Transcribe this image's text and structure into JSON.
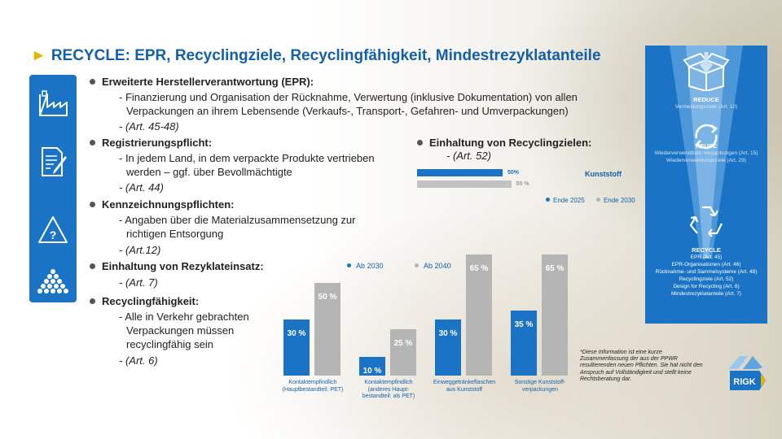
{
  "title": "RECYCLE: EPR, Recyclingziele, Recyclingfähigkeit, Mindestrezyklatanteile",
  "left_icons": [
    "factory-icon",
    "document-pen-icon",
    "warning-question-icon",
    "granules-icon"
  ],
  "left_icon_question": "?",
  "bullets": [
    {
      "heading": "Erweiterte Herstellerverantwortung (EPR):",
      "lines": [
        "- Finanzierung und Organisation der Rücknahme, Verwertung (inklusive Dokumentation) von allen",
        "Verpackungen an ihrem Lebensende (Verkaufs-, Transport-, Gefahren- und Umverpackungen)"
      ],
      "ref": "- (Art. 45-48)"
    },
    {
      "heading": "Registrierungspflicht:",
      "lines": [
        "- In jedem Land, in dem verpackte Produkte vertrieben",
        "werden – ggf. über Bevollmächtigte"
      ],
      "ref": "- (Art. 44)"
    },
    {
      "heading": "Kennzeichnungspflichten:",
      "lines": [
        "- Angaben über die Materialzusammensetzung zur",
        "richtigen Entsorgung"
      ],
      "ref": "- (Art.12)"
    },
    {
      "heading": "Einhaltung von Rezyklateinsatz:",
      "lines": [],
      "ref": "- (Art. 7)"
    },
    {
      "heading": "Recyclingfähigkeit:",
      "lines": [
        "- Alle in Verkehr gebrachten",
        "Verpackungen müssen",
        "recyclingfähig sein"
      ],
      "ref": "- (Art. 6)"
    }
  ],
  "recycling_goals": {
    "heading": "Einhaltung von Recyclingzielen:",
    "ref": "- (Art. 52)"
  },
  "chart_data": [
    {
      "type": "bar",
      "orientation": "horizontal",
      "categories": [
        "Kunststoff"
      ],
      "series": [
        {
          "name": "Ende 2025",
          "values": [
            50
          ],
          "label": "50%"
        },
        {
          "name": "Ende 2030",
          "values": [
            55
          ],
          "label": "55 %"
        }
      ],
      "xlim": [
        0,
        100
      ]
    },
    {
      "type": "bar",
      "categories": [
        "Kontaktempfindlich (Hauptbestandteil: PET)",
        "Kontaktempfindlich (anderes Haupt-bestandteil: als PET)",
        "Einweggetränkeflaschen aus Kunststoff",
        "Sonstige Kunststoff-verpackungen"
      ],
      "category_lines": [
        [
          "Kontaktempfindlich",
          "(Hauptbestandteil: PET)"
        ],
        [
          "Kontaktempfindlich",
          "(anderes Haupt-",
          "bestandteil: als PET)"
        ],
        [
          "Einweggetränkeflaschen",
          "aus Kunststoff"
        ],
        [
          "Sonstige Kunststoff-",
          "verpackungen"
        ]
      ],
      "series": [
        {
          "name": "Ab 2030",
          "values": [
            30,
            10,
            30,
            35
          ],
          "labels": [
            "30 %",
            "10 %",
            "30 %",
            "35 %"
          ]
        },
        {
          "name": "Ab 2040",
          "values": [
            50,
            25,
            65,
            65
          ],
          "labels": [
            "50 %",
            "25 %",
            "65 %",
            "65 %"
          ]
        }
      ],
      "ylim": [
        0,
        70
      ]
    }
  ],
  "colors": {
    "blue": "#1a73c4",
    "grey": "#a9a9a9",
    "title": "#1460a8",
    "arrow": "#e2b400"
  },
  "right_panel": {
    "reduce": {
      "title": "REDUCE",
      "lines": [
        "Vermeidungsziele (Art. 10)"
      ]
    },
    "reuse": {
      "title": "REUSE",
      "lines": [
        "Wiederverwendbare Verpackungen (Art. 15)",
        "Wiederverwendungsziele (Art. 29)"
      ]
    },
    "recycle": {
      "title": "RECYCLE",
      "lines": [
        "EPR (Art. 45)",
        "EPR-Organisationen (Art. 46)",
        "Rücknahme- und Sammelsysteme (Art. 48)",
        "Recyclingziele (Art. 52)",
        "Design for Recycling (Art. 6)",
        "Mindestrezyklatanteile (Art. 7)"
      ]
    }
  },
  "note": "*Diese Information ist eine kurze Zusammenfassung der aus der PPWR resultierenden neuen Pflichten. Sie hat nicht den Anspruch auf Vollständigkeit und stellt keine Rechtsberatung dar.",
  "logo_text": "RIGK"
}
